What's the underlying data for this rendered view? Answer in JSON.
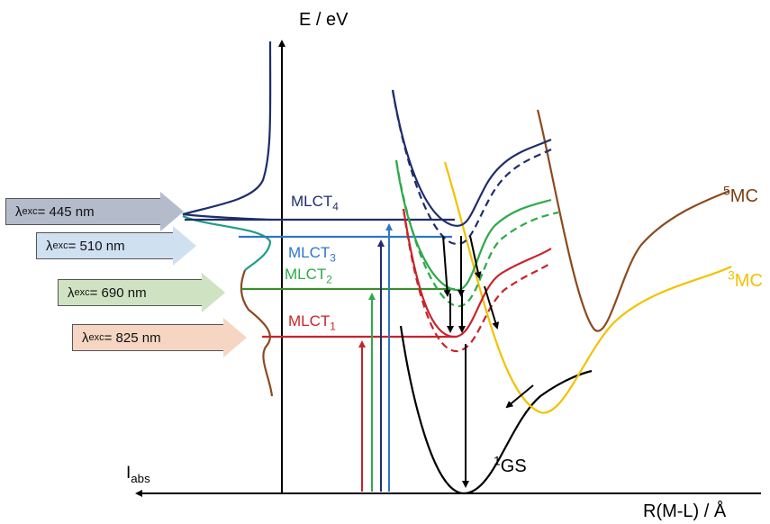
{
  "axes": {
    "y_label": "E / eV",
    "x_label": "R(M-L) / Å",
    "intensity_label": {
      "main": "I",
      "sub": "abs"
    }
  },
  "excitations": [
    {
      "prefix": "λ",
      "sub": "exc",
      "text": " = 445 nm",
      "color": "#b4bccb"
    },
    {
      "prefix": "λ",
      "sub": "exc",
      "text": " = 510 nm",
      "color": "#cfe0f1"
    },
    {
      "prefix": "λ",
      "sub": "exc",
      "text": " = 690 nm",
      "color": "#cfe3c3"
    },
    {
      "prefix": "λ",
      "sub": "exc",
      "text": " = 825 nm",
      "color": "#f6d6c3"
    }
  ],
  "states": [
    {
      "main": "MLCT",
      "sub": "4",
      "color": "#1f2d6b"
    },
    {
      "main": "MLCT",
      "sub": "3",
      "color": "#2e76c6"
    },
    {
      "main": "MLCT",
      "sub": "2",
      "color": "#2eaa4a"
    },
    {
      "main": "MLCT",
      "sub": "1",
      "color": "#c8242b"
    }
  ],
  "mc_states": [
    {
      "sup": "5",
      "main": "MC",
      "color": "#7b3f12"
    },
    {
      "sup": "3",
      "main": "MC",
      "color": "#f2c200"
    }
  ],
  "ground_state": {
    "sup": "1",
    "main": "GS",
    "color": "#000000"
  }
}
